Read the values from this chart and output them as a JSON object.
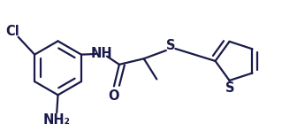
{
  "bg_color": "#ffffff",
  "line_color": "#1a1a4a",
  "line_width": 1.6,
  "font_size": 10.5,
  "figsize": [
    3.19,
    1.57
  ],
  "dpi": 100,
  "xlim": [
    -1.5,
    3.3
  ],
  "ylim": [
    -1.15,
    1.1
  ]
}
